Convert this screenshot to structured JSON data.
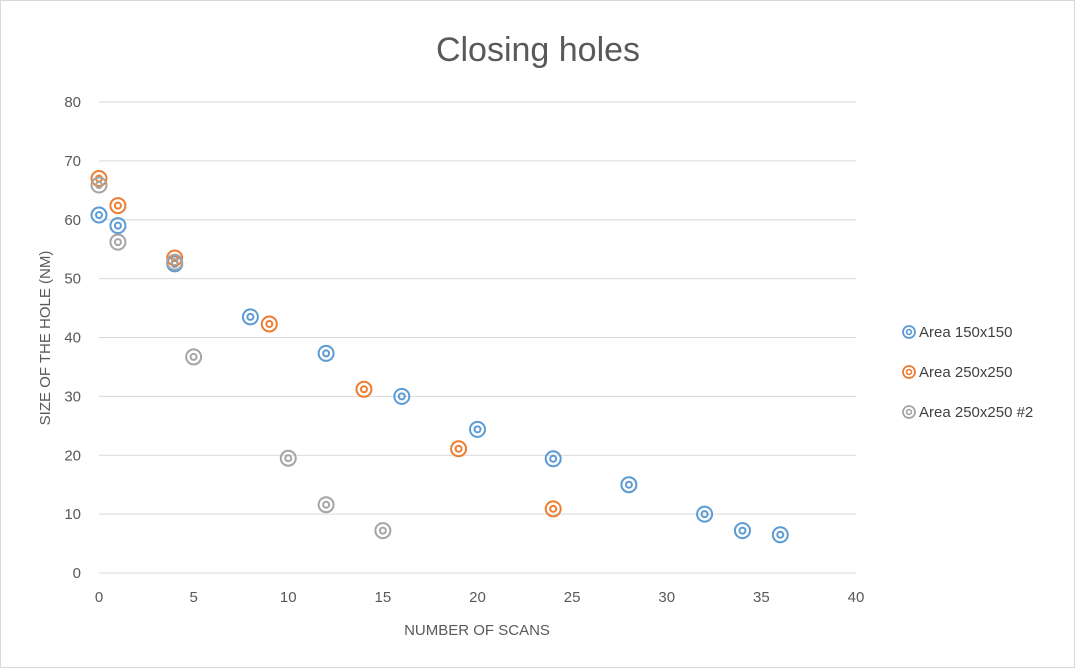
{
  "chart_data": {
    "type": "scatter",
    "title": "Closing holes",
    "xlabel": "NUMBER OF SCANS",
    "ylabel": "SIZE OF THE HOLE (NM)",
    "xlim": [
      0,
      40
    ],
    "ylim": [
      0,
      80
    ],
    "x_ticks": [
      "0",
      "5",
      "10",
      "15",
      "20",
      "25",
      "30",
      "35",
      "40"
    ],
    "y_ticks": [
      "0",
      "10",
      "20",
      "30",
      "40",
      "50",
      "60",
      "70",
      "80"
    ],
    "grid": "horizontal",
    "legend_position": "right",
    "series": [
      {
        "name": "Area 150x150",
        "color": "#5b9bd5",
        "points": [
          [
            0,
            60.8
          ],
          [
            1,
            59
          ],
          [
            4,
            52.5
          ],
          [
            8,
            43.5
          ],
          [
            12,
            37.3
          ],
          [
            16,
            30
          ],
          [
            20,
            24.4
          ],
          [
            24,
            19.4
          ],
          [
            28,
            15
          ],
          [
            32,
            10
          ],
          [
            34,
            7.2
          ],
          [
            36,
            6.5
          ]
        ]
      },
      {
        "name": "Area 250x250",
        "color": "#ed7d31",
        "points": [
          [
            0,
            67
          ],
          [
            1,
            62.4
          ],
          [
            4,
            53.5
          ],
          [
            9,
            42.3
          ],
          [
            14,
            31.2
          ],
          [
            19,
            21.1
          ],
          [
            24,
            10.9
          ]
        ]
      },
      {
        "name": "Area 250x250 #2",
        "color": "#a5a5a5",
        "points": [
          [
            0,
            65.9
          ],
          [
            1,
            56.2
          ],
          [
            4,
            52.8
          ],
          [
            5,
            36.7
          ],
          [
            10,
            19.5
          ],
          [
            12,
            11.6
          ],
          [
            15,
            7.2
          ]
        ]
      }
    ]
  }
}
